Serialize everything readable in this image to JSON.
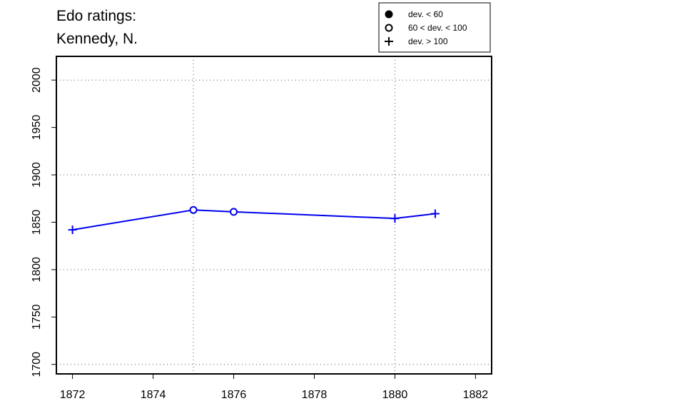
{
  "chart_data": {
    "type": "line",
    "title": [
      "Edo ratings:",
      "Kennedy, N."
    ],
    "xlabel": "",
    "ylabel": "",
    "xlim": [
      1871.6,
      1882.4
    ],
    "ylim": [
      1690,
      2025
    ],
    "x_ticks": [
      1872,
      1874,
      1876,
      1878,
      1880,
      1882
    ],
    "y_ticks": [
      1700,
      1750,
      1800,
      1850,
      1900,
      1950,
      2000
    ],
    "x_grid": [
      1875,
      1880
    ],
    "y_grid": [
      1700,
      1800,
      1900,
      2000
    ],
    "grid": "dotted",
    "legend": {
      "placement": "top-right",
      "entries": [
        {
          "marker": "filled-circle",
          "label": "dev. < 60"
        },
        {
          "marker": "open-circle",
          "label": "60 < dev. < 100"
        },
        {
          "marker": "plus",
          "label": "dev. > 100"
        }
      ]
    },
    "series": [
      {
        "color": "#0000ee",
        "points": [
          {
            "x": 1872,
            "y": 1842,
            "marker": "plus"
          },
          {
            "x": 1875,
            "y": 1863,
            "marker": "open-circle"
          },
          {
            "x": 1876,
            "y": 1861,
            "marker": "open-circle"
          },
          {
            "x": 1880,
            "y": 1854,
            "marker": "plus"
          },
          {
            "x": 1881,
            "y": 1859,
            "marker": "plus"
          }
        ]
      }
    ]
  }
}
